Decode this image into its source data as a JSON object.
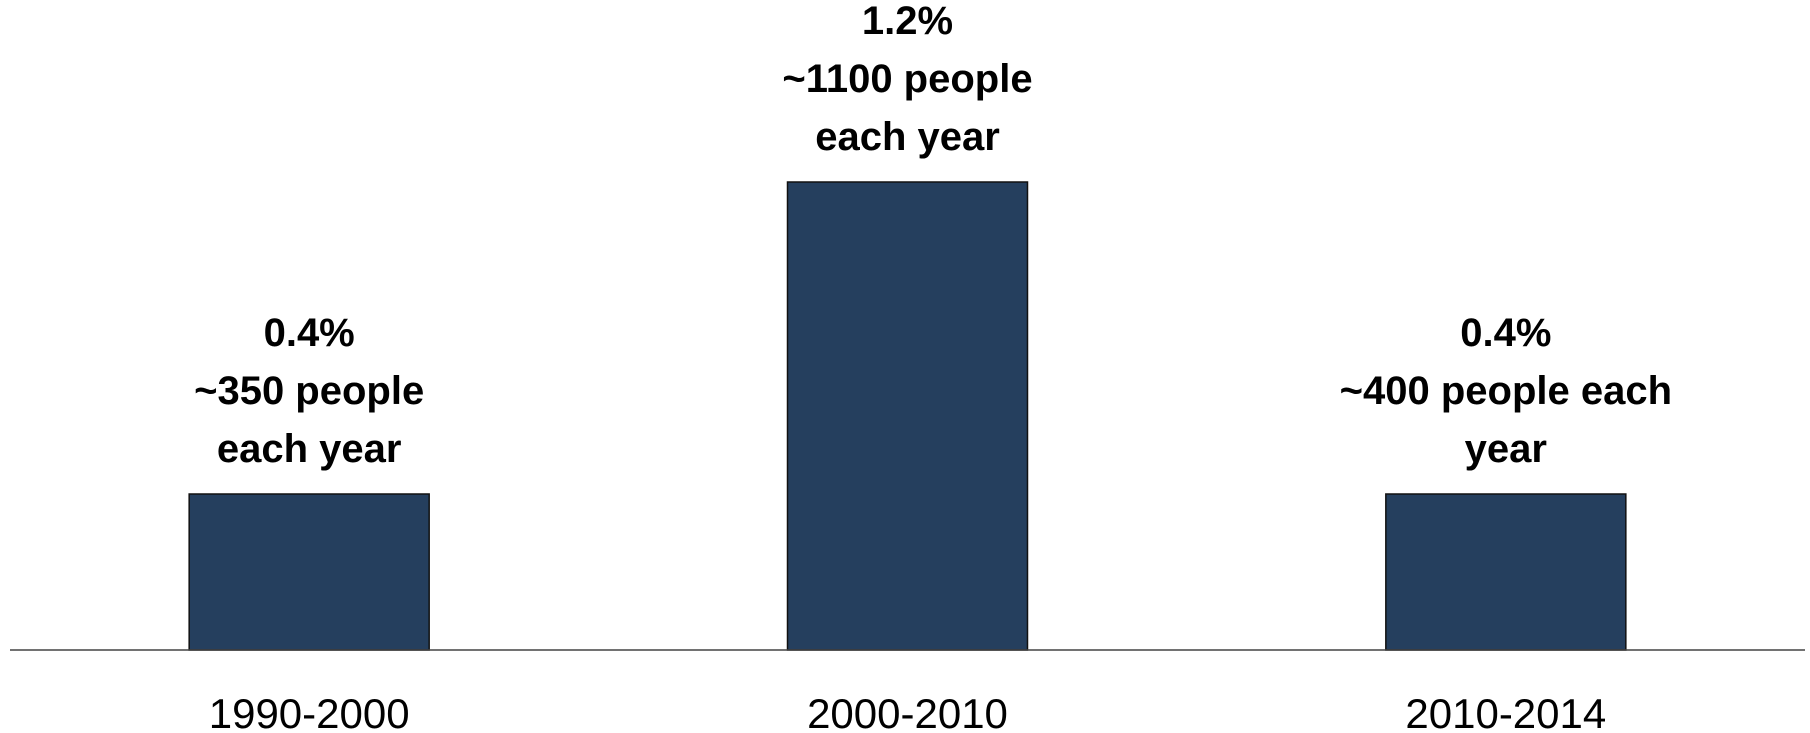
{
  "chart_data": {
    "type": "bar",
    "categories": [
      "1990-2000",
      "2000-2010",
      "2010-2014"
    ],
    "values": [
      0.4,
      1.2,
      0.4
    ],
    "unit": "%",
    "ylim": [
      0,
      1.2
    ],
    "data_labels": [
      [
        "0.4%",
        "~350 people",
        "each year"
      ],
      [
        "1.2%",
        "~1100 people",
        "each year"
      ],
      [
        "0.4%",
        "~400 people each",
        "year"
      ]
    ],
    "title": "",
    "xlabel": "",
    "ylabel": "",
    "grid": false,
    "legend": "none",
    "bar_color": "#253f5e"
  }
}
